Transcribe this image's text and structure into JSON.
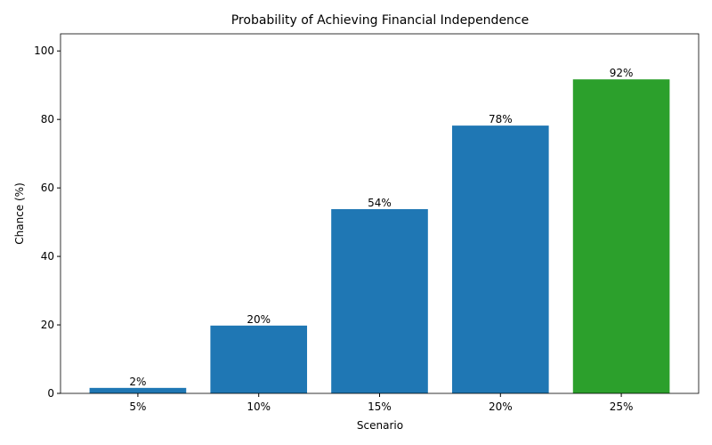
{
  "chart_data": {
    "type": "bar",
    "title": "Probability of Achieving Financial Independence",
    "x_label": "Scenario",
    "y_label": "Chance (%)",
    "categories": [
      "5%",
      "10%",
      "15%",
      "20%",
      "25%"
    ],
    "values": [
      1.6,
      19.8,
      53.8,
      78.2,
      91.7
    ],
    "value_labels": [
      "2%",
      "20%",
      "54%",
      "78%",
      "92%"
    ],
    "colors": [
      "#1f77b4",
      "#1f77b4",
      "#1f77b4",
      "#1f77b4",
      "#2ca02c"
    ],
    "ylim": [
      0,
      105
    ],
    "yticks": [
      0,
      20,
      40,
      60,
      80,
      100
    ],
    "grid": false
  }
}
